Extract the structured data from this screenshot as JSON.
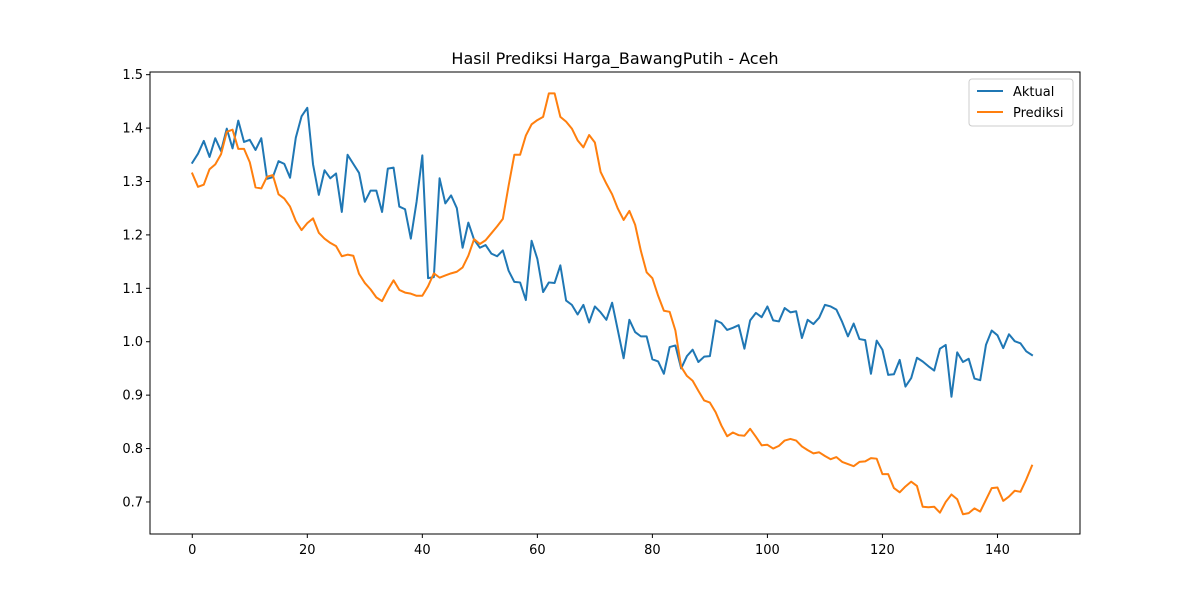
{
  "chart_data": {
    "type": "line",
    "title": "Hasil Prediksi Harga_BawangPutih - Aceh",
    "xlabel": "",
    "ylabel": "",
    "xlim": [
      -7.35,
      154.35
    ],
    "ylim": [
      0.64,
      1.505
    ],
    "x_ticks": [
      0,
      20,
      40,
      60,
      80,
      100,
      120,
      140
    ],
    "y_ticks": [
      0.7,
      0.8,
      0.9,
      1.0,
      1.1,
      1.2,
      1.3,
      1.4,
      1.5
    ],
    "y_tick_labels": [
      "0.7",
      "0.8",
      "0.9",
      "1.0",
      "1.1",
      "1.2",
      "1.3",
      "1.4",
      "1.5"
    ],
    "grid": false,
    "legend_position": "top-right",
    "series": [
      {
        "name": "Aktual",
        "color": "#1f77b4",
        "values": [
          1.335,
          1.352,
          1.376,
          1.346,
          1.381,
          1.357,
          1.399,
          1.362,
          1.414,
          1.374,
          1.378,
          1.359,
          1.381,
          1.305,
          1.308,
          1.338,
          1.333,
          1.307,
          1.382,
          1.422,
          1.438,
          1.332,
          1.275,
          1.321,
          1.306,
          1.315,
          1.243,
          1.35,
          1.333,
          1.316,
          1.262,
          1.283,
          1.283,
          1.243,
          1.324,
          1.326,
          1.253,
          1.248,
          1.193,
          1.262,
          1.349,
          1.119,
          1.121,
          1.306,
          1.259,
          1.274,
          1.25,
          1.176,
          1.223,
          1.191,
          1.176,
          1.181,
          1.165,
          1.16,
          1.171,
          1.133,
          1.112,
          1.111,
          1.078,
          1.189,
          1.155,
          1.093,
          1.111,
          1.11,
          1.143,
          1.077,
          1.069,
          1.051,
          1.069,
          1.036,
          1.066,
          1.055,
          1.041,
          1.073,
          1.021,
          0.969,
          1.041,
          1.018,
          1.01,
          1.01,
          0.967,
          0.963,
          0.94,
          0.99,
          0.993,
          0.95,
          0.973,
          0.985,
          0.962,
          0.972,
          0.973,
          1.04,
          1.035,
          1.022,
          1.026,
          1.031,
          0.987,
          1.04,
          1.054,
          1.046,
          1.066,
          1.04,
          1.038,
          1.063,
          1.055,
          1.057,
          1.007,
          1.041,
          1.033,
          1.045,
          1.069,
          1.066,
          1.06,
          1.037,
          1.01,
          1.034,
          1.005,
          1.003,
          0.94,
          1.002,
          0.985,
          0.938,
          0.939,
          0.966,
          0.916,
          0.932,
          0.97,
          0.963,
          0.954,
          0.946,
          0.987,
          0.994,
          0.897,
          0.98,
          0.962,
          0.968,
          0.931,
          0.928,
          0.994,
          1.021,
          1.012,
          0.988,
          1.014,
          1.001,
          0.997,
          0.982,
          0.975
        ]
      },
      {
        "name": "Prediksi",
        "color": "#ff7f0e",
        "values": [
          1.315,
          1.29,
          1.294,
          1.323,
          1.332,
          1.351,
          1.393,
          1.397,
          1.361,
          1.361,
          1.336,
          1.289,
          1.287,
          1.309,
          1.312,
          1.276,
          1.268,
          1.253,
          1.226,
          1.209,
          1.222,
          1.231,
          1.204,
          1.193,
          1.185,
          1.179,
          1.16,
          1.163,
          1.161,
          1.127,
          1.11,
          1.098,
          1.083,
          1.076,
          1.097,
          1.115,
          1.097,
          1.092,
          1.09,
          1.086,
          1.086,
          1.104,
          1.128,
          1.12,
          1.124,
          1.128,
          1.131,
          1.139,
          1.161,
          1.192,
          1.183,
          1.19,
          1.203,
          1.216,
          1.23,
          1.292,
          1.35,
          1.35,
          1.386,
          1.407,
          1.415,
          1.421,
          1.465,
          1.465,
          1.421,
          1.412,
          1.399,
          1.377,
          1.364,
          1.387,
          1.373,
          1.318,
          1.296,
          1.276,
          1.249,
          1.228,
          1.245,
          1.219,
          1.17,
          1.13,
          1.119,
          1.086,
          1.058,
          1.056,
          1.021,
          0.953,
          0.936,
          0.927,
          0.908,
          0.89,
          0.886,
          0.868,
          0.843,
          0.823,
          0.83,
          0.825,
          0.824,
          0.837,
          0.822,
          0.806,
          0.807,
          0.8,
          0.805,
          0.815,
          0.818,
          0.815,
          0.804,
          0.797,
          0.791,
          0.793,
          0.786,
          0.78,
          0.784,
          0.775,
          0.771,
          0.767,
          0.775,
          0.776,
          0.782,
          0.781,
          0.752,
          0.752,
          0.726,
          0.718,
          0.729,
          0.738,
          0.73,
          0.691,
          0.69,
          0.691,
          0.68,
          0.7,
          0.714,
          0.705,
          0.677,
          0.679,
          0.688,
          0.682,
          0.704,
          0.726,
          0.727,
          0.702,
          0.71,
          0.721,
          0.719,
          0.742,
          0.768
        ]
      }
    ]
  }
}
